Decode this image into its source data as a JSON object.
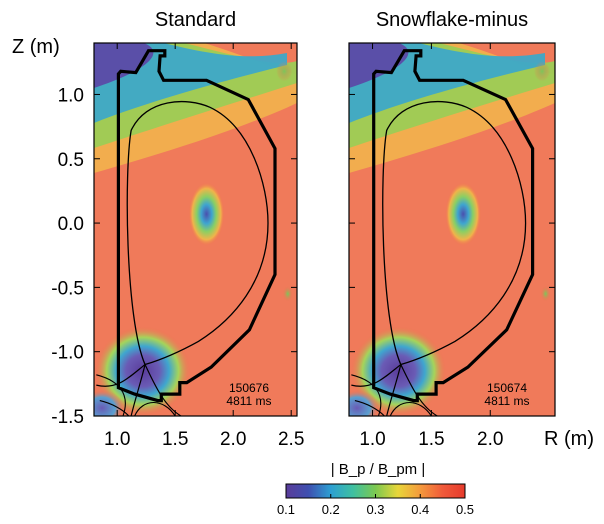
{
  "chart_data": {
    "type": "heatmap",
    "colorbar": {
      "title": "| B_p / B_pm |",
      "ticks": [
        "0.1",
        "0.2",
        "0.3",
        "0.4",
        "0.5"
      ],
      "range": [
        0.1,
        0.5
      ],
      "colors": [
        "#5a3c9a",
        "#3e4fb0",
        "#2c9fd2",
        "#3fc0a0",
        "#7cc850",
        "#e8d63a",
        "#f49a3c",
        "#f05a3a",
        "#e63a2c"
      ]
    },
    "ylabel": "Z (m)",
    "ylim": [
      -1.5,
      1.4
    ],
    "yticks": [
      "1.0",
      "0.5",
      "0.0",
      "-0.5",
      "-1.0",
      "-1.5"
    ],
    "panels": [
      {
        "title": "Standard",
        "shot": "150676",
        "time": "4811 ms",
        "xlim": [
          0.8,
          2.55
        ],
        "xticks": [
          "1.0",
          "1.5",
          "2.0",
          "2.5"
        ],
        "xlabel": ""
      },
      {
        "title": "Snowflake-minus",
        "shot": "150674",
        "time": "4811 ms",
        "xlim": [
          0.8,
          2.55
        ],
        "xticks": [
          "1.0",
          "1.5",
          "2.0"
        ],
        "xlabel": "R (m)"
      }
    ]
  }
}
